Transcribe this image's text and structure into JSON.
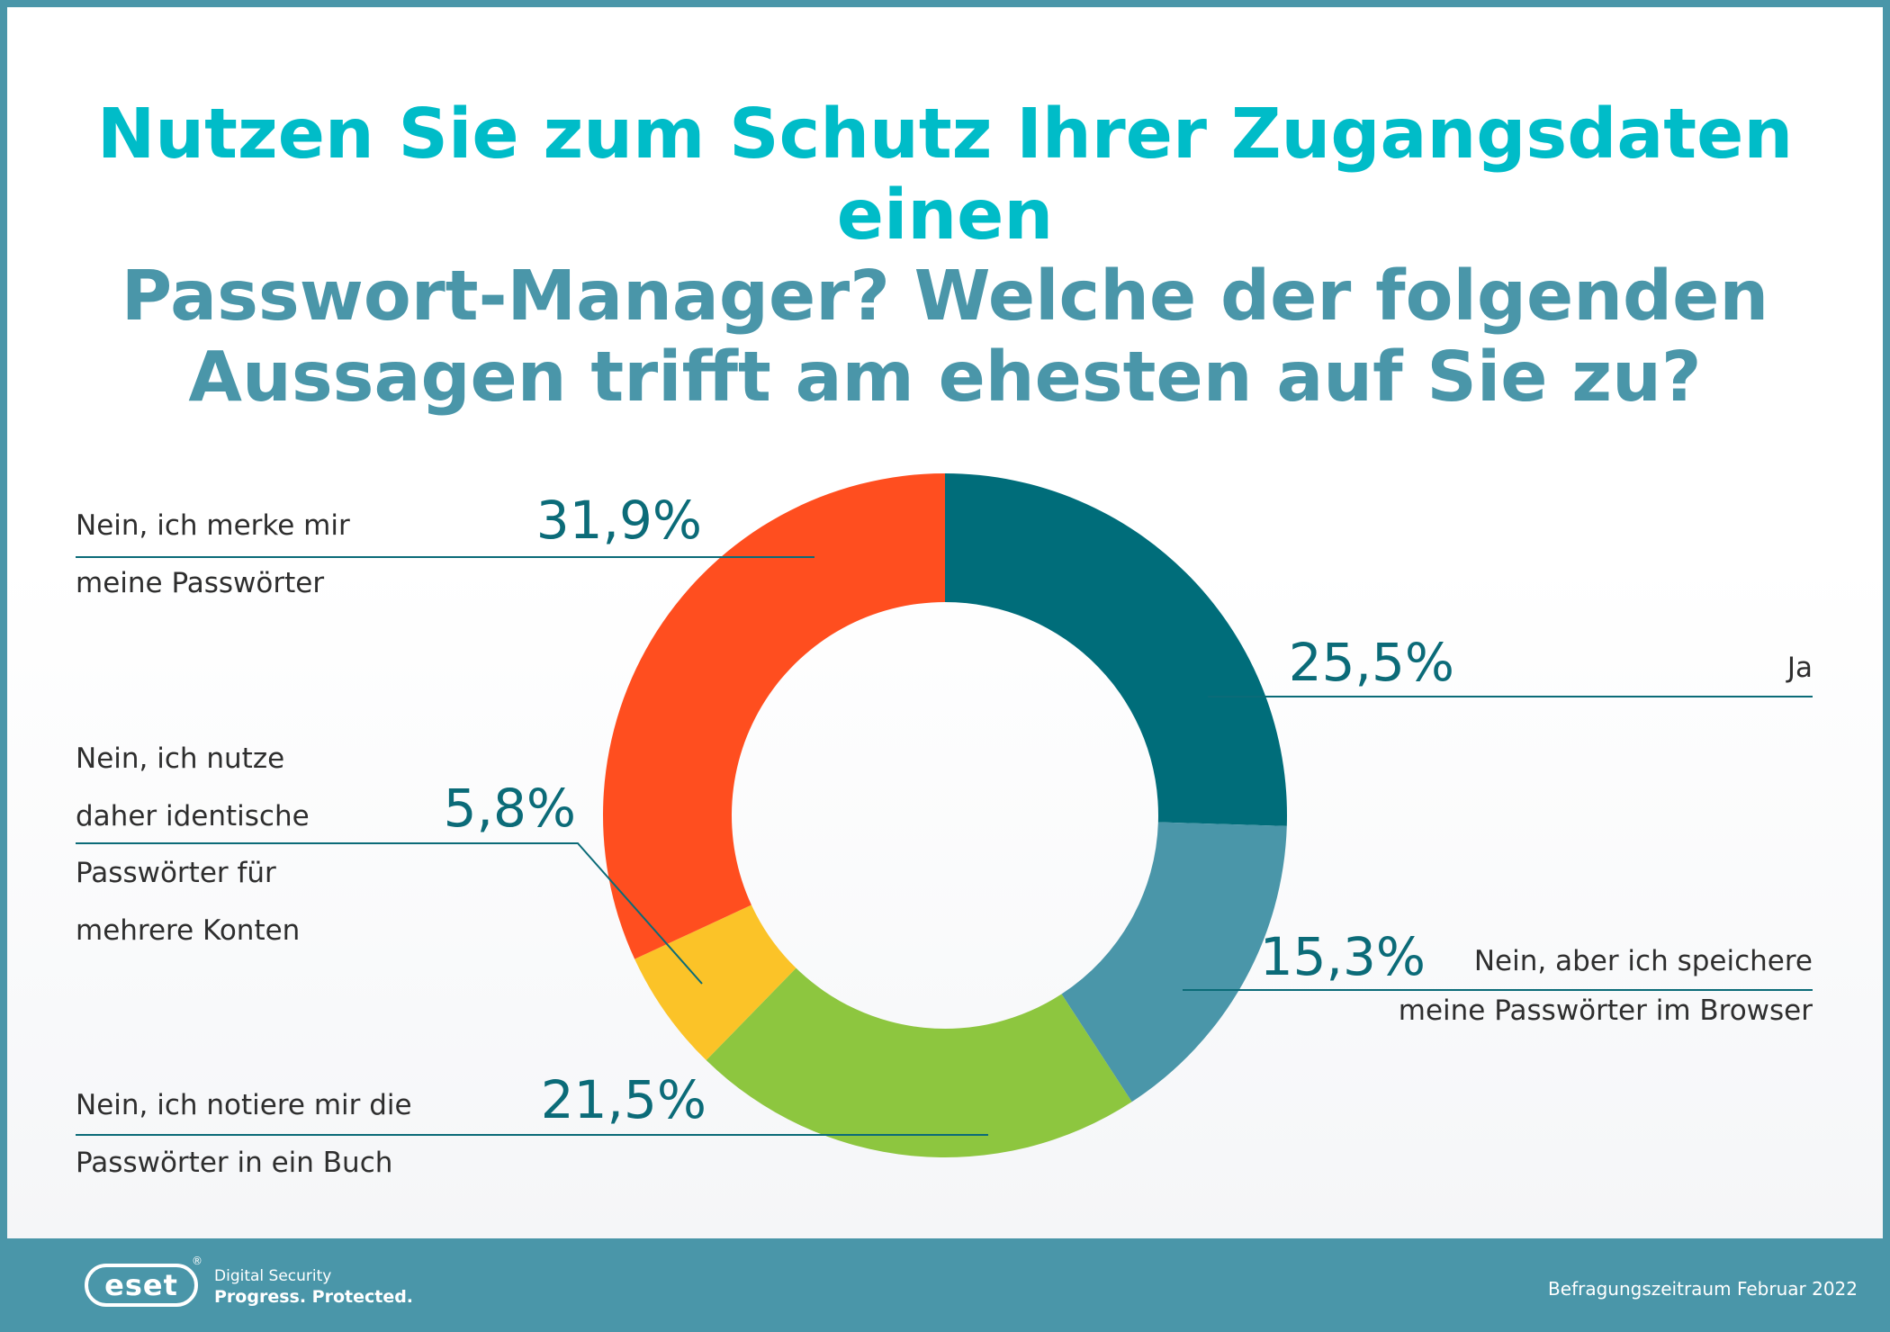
{
  "title": {
    "line1": "Nutzen Sie zum Schutz Ihrer Zugangsdaten einen",
    "line2": "Passwort-Manager? Welche der folgenden",
    "line3": "Aussagen trifft am ehesten auf Sie zu?"
  },
  "chart_data": {
    "type": "pie",
    "donut": true,
    "unit": "%",
    "slices": [
      {
        "label": "Ja",
        "value": 25.5,
        "display": "25,5%",
        "color": "#006d7a"
      },
      {
        "label": "Nein, aber ich speichere meine Passwörter im Browser",
        "value": 15.3,
        "display": "15,3%",
        "color": "#4a96a9"
      },
      {
        "label": "Nein, ich notiere mir die Passwörter in ein Buch",
        "value": 21.5,
        "display": "21,5%",
        "color": "#8dc63f"
      },
      {
        "label": "Nein, ich nutze daher identische Passwörter für mehrere Konten",
        "value": 5.8,
        "display": "5,8%",
        "color": "#fbc328"
      },
      {
        "label": "Nein, ich merke mir meine Passwörter",
        "value": 31.9,
        "display": "31,9%",
        "color": "#ff4e1f"
      }
    ]
  },
  "labels": {
    "ja": "Ja",
    "browser": [
      "Nein, aber ich speichere",
      "meine Passwörter im Browser"
    ],
    "buch": [
      "Nein, ich notiere mir die",
      "Passwörter in ein Buch"
    ],
    "identisch": [
      "Nein, ich nutze",
      "daher identische",
      "Passwörter für",
      "mehrere Konten"
    ],
    "merke": [
      "Nein, ich merke mir",
      "meine Passwörter"
    ]
  },
  "footer": {
    "logo_text": "eset",
    "registered_mark": "®",
    "tagline1": "Digital Security",
    "tagline2": "Progress. Protected.",
    "period": "Befragungszeitraum Februar 2022"
  }
}
